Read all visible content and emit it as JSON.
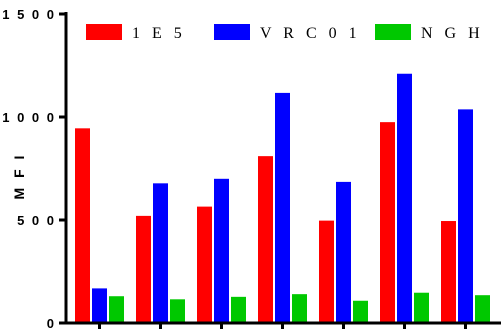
{
  "chart_data": {
    "type": "bar",
    "title": "",
    "xlabel": "",
    "ylabel": "M F I",
    "ylim": [
      0,
      1500
    ],
    "yticks": [
      0,
      500,
      1000,
      1500
    ],
    "ytick_labels": [
      "0",
      "5 0 0",
      "1 0 0 0",
      "1 5 0 0"
    ],
    "categories": [
      "",
      "",
      "",
      "",
      "",
      "",
      ""
    ],
    "grid": false,
    "legend_position": "top",
    "series": [
      {
        "name": "1 E 5",
        "color": "#ff0000",
        "values": [
          945,
          520,
          565,
          810,
          497,
          975,
          495
        ]
      },
      {
        "name": "V R C 0 1",
        "color": "#0000ff",
        "values": [
          168,
          678,
          700,
          1117,
          685,
          1210,
          1037
        ]
      },
      {
        "name": "N G H",
        "color": "#00c800",
        "values": [
          130,
          115,
          127,
          140,
          108,
          147,
          135
        ]
      }
    ]
  }
}
